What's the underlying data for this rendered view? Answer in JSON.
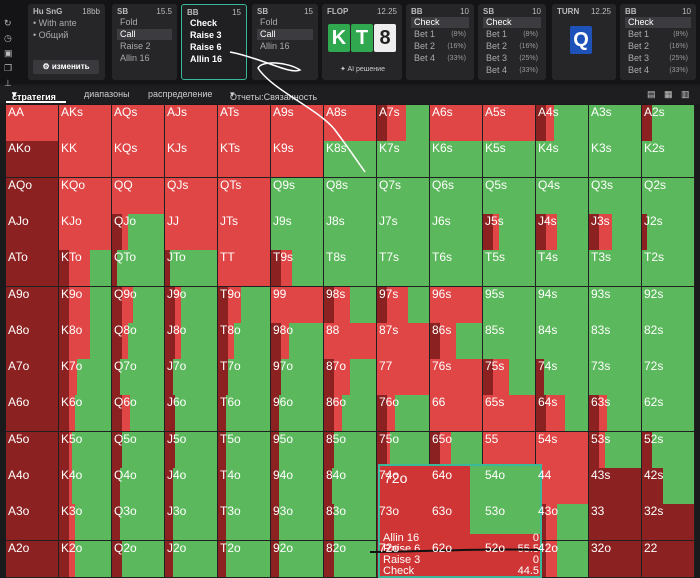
{
  "header": {
    "game": "Hu SnG",
    "stack": "18bb",
    "options": [
      "With ante",
      "Общий"
    ],
    "edit_label": "изменить",
    "panels": [
      {
        "pos": "SB",
        "stack": "15.5",
        "actions": [
          {
            "label": "Fold"
          },
          {
            "label": "Call",
            "sel": true
          },
          {
            "label": "Raise 2"
          },
          {
            "label": "Allin 16"
          }
        ]
      },
      {
        "pos": "BB",
        "stack": "15",
        "active": true,
        "actions": [
          {
            "label": "Check"
          },
          {
            "label": "Raise 3"
          },
          {
            "label": "Raise 6"
          },
          {
            "label": "Allin 16"
          }
        ]
      },
      {
        "pos": "SB",
        "stack": "15",
        "actions": [
          {
            "label": "Fold"
          },
          {
            "label": "Call",
            "sel": true
          },
          {
            "label": "Allin 16"
          }
        ]
      },
      {
        "pos": "BB",
        "stack": "10",
        "actions": [
          {
            "label": "Check",
            "sel": true
          },
          {
            "label": "Bet 1",
            "pct": "(8%)"
          },
          {
            "label": "Bet 2",
            "pct": "(16%)"
          },
          {
            "label": "Bet 4",
            "pct": "(33%)"
          }
        ]
      },
      {
        "pos": "SB",
        "stack": "10",
        "actions": [
          {
            "label": "Check",
            "sel": true
          },
          {
            "label": "Bet 1",
            "pct": "(8%)"
          },
          {
            "label": "Bet 2",
            "pct": "(16%)"
          },
          {
            "label": "Bet 3",
            "pct": "(25%)"
          },
          {
            "label": "Bet 4",
            "pct": "(33%)"
          }
        ]
      },
      {
        "pos": "BB",
        "stack": "10",
        "actions": [
          {
            "label": "Check",
            "sel": true
          },
          {
            "label": "Bet 1",
            "pct": "(8%)"
          },
          {
            "label": "Bet 2",
            "pct": "(16%)"
          },
          {
            "label": "Bet 3",
            "pct": "(25%)"
          },
          {
            "label": "Bet 4",
            "pct": "(33%)"
          }
        ]
      }
    ],
    "flop": {
      "label": "FLOP",
      "pot": "12.25",
      "cards": [
        "K",
        "T",
        "8"
      ],
      "ai_label": "AI решение"
    },
    "turn": {
      "label": "TURN",
      "pot": "12.25",
      "card": "Q"
    }
  },
  "tabs": [
    "стратегия",
    "диапазоны",
    "распределение",
    "Отчеты:Связанность"
  ],
  "colors": {
    "red": "#e04646",
    "dark_red": "#8c2121",
    "green": "#5cb85c",
    "gray": "#c9c9c9",
    "accent": "#39b89a"
  },
  "grid": {
    "rows": [
      [
        "AA",
        "AKs",
        "AQs",
        "AJs",
        "ATs",
        "A9s",
        "A8s",
        "A7s",
        "A6s",
        "A5s",
        "A4s",
        "A3s",
        "A2s"
      ],
      [
        "AKo",
        "KK",
        "KQs",
        "KJs",
        "KTs",
        "K9s",
        "K8s",
        "K7s",
        "K6s",
        "K5s",
        "K4s",
        "K3s",
        "K2s"
      ],
      [
        "AQo",
        "KQo",
        "QQ",
        "QJs",
        "QTs",
        "Q9s",
        "Q8s",
        "Q7s",
        "Q6s",
        "Q5s",
        "Q4s",
        "Q3s",
        "Q2s"
      ],
      [
        "AJo",
        "KJo",
        "QJo",
        "JJ",
        "JTs",
        "J9s",
        "J8s",
        "J7s",
        "J6s",
        "J5s",
        "J4s",
        "J3s",
        "J2s"
      ],
      [
        "ATo",
        "KTo",
        "QTo",
        "JTo",
        "TT",
        "T9s",
        "T8s",
        "T7s",
        "T6s",
        "T5s",
        "T4s",
        "T3s",
        "T2s"
      ],
      [
        "A9o",
        "K9o",
        "Q9o",
        "J9o",
        "T9o",
        "99",
        "98s",
        "97s",
        "96s",
        "95s",
        "94s",
        "93s",
        "92s"
      ],
      [
        "A8o",
        "K8o",
        "Q8o",
        "J8o",
        "T8o",
        "98o",
        "88",
        "87s",
        "86s",
        "85s",
        "84s",
        "83s",
        "82s"
      ],
      [
        "A7o",
        "K7o",
        "Q7o",
        "J7o",
        "T7o",
        "97o",
        "87o",
        "77",
        "76s",
        "75s",
        "74s",
        "73s",
        "72s"
      ],
      [
        "A6o",
        "K6o",
        "Q6o",
        "J6o",
        "T6o",
        "96o",
        "86o",
        "76o",
        "66",
        "65s",
        "64s",
        "63s",
        "62s"
      ],
      [
        "A5o",
        "K5o",
        "Q5o",
        "J5o",
        "T5o",
        "95o",
        "85o",
        "75o",
        "65o",
        "55",
        "54s",
        "53s",
        "52s"
      ],
      [
        "A4o",
        "K4o",
        "Q4o",
        "J4o",
        "T4o",
        "94o",
        "84o",
        "74o",
        "64o",
        "54o",
        "44",
        "43s",
        "42s"
      ],
      [
        "A3o",
        "K3o",
        "Q3o",
        "J3o",
        "T3o",
        "93o",
        "83o",
        "73o",
        "63o",
        "53o",
        "43o",
        "33",
        "32s"
      ],
      [
        "A2o",
        "K2o",
        "Q2o",
        "J2o",
        "T2o",
        "92o",
        "82o",
        "72o",
        "62o",
        "52o",
        "42o",
        "32o",
        "22"
      ]
    ],
    "red_share": [
      [
        1,
        1,
        1,
        1,
        1,
        1,
        1,
        0.55,
        1,
        1,
        0.35,
        0,
        0.2
      ],
      [
        1,
        1,
        1,
        1,
        1,
        1,
        0,
        0,
        0,
        0,
        0,
        0,
        0
      ],
      [
        1,
        1,
        1,
        1,
        1,
        0,
        0,
        0,
        0,
        0,
        0,
        0,
        0
      ],
      [
        1,
        1,
        0.3,
        1,
        1,
        0,
        0,
        0,
        0,
        0.3,
        0.4,
        0.45,
        0.1
      ],
      [
        1,
        0.6,
        0.1,
        0.1,
        1,
        0.4,
        0,
        0,
        0,
        0,
        0,
        0,
        0
      ],
      [
        1,
        0.6,
        0.4,
        0.3,
        0.45,
        1,
        0.5,
        0.6,
        1,
        0,
        0,
        0,
        0
      ],
      [
        1,
        0.6,
        0.3,
        0.3,
        0.3,
        0.35,
        1,
        1,
        0.5,
        0,
        0,
        0,
        0
      ],
      [
        1,
        0.35,
        0.15,
        0.15,
        0.2,
        0.2,
        0.5,
        1,
        1,
        0.5,
        0.15,
        0,
        0
      ],
      [
        1,
        0.3,
        0.35,
        0.2,
        0.15,
        0.15,
        0.35,
        0.35,
        1,
        1,
        0.55,
        0.35,
        0
      ],
      [
        1,
        0.25,
        0.2,
        0.2,
        0.15,
        0.15,
        0.2,
        0.25,
        0.4,
        1,
        1,
        0.3,
        0.2
      ],
      [
        1,
        0.25,
        0.15,
        0.15,
        0.15,
        0.15,
        0.15,
        0.15,
        0.15,
        0.3,
        1,
        1,
        0.4
      ],
      [
        1,
        0.3,
        0.15,
        0.15,
        0.15,
        0.15,
        0.2,
        0.15,
        0.15,
        0.2,
        0.4,
        1,
        1
      ],
      [
        1,
        0.3,
        0.2,
        0.15,
        0.15,
        0.15,
        0.2,
        0.15,
        0.15,
        0.15,
        0.4,
        1,
        1
      ]
    ]
  },
  "tooltip": {
    "hand": "72o",
    "rows": [
      {
        "label": "Allin 16",
        "value": "0"
      },
      {
        "label": "Raise 6",
        "value": "55.5"
      },
      {
        "label": "Raise 3",
        "value": "0"
      },
      {
        "label": "Check",
        "value": "44.5"
      }
    ]
  }
}
